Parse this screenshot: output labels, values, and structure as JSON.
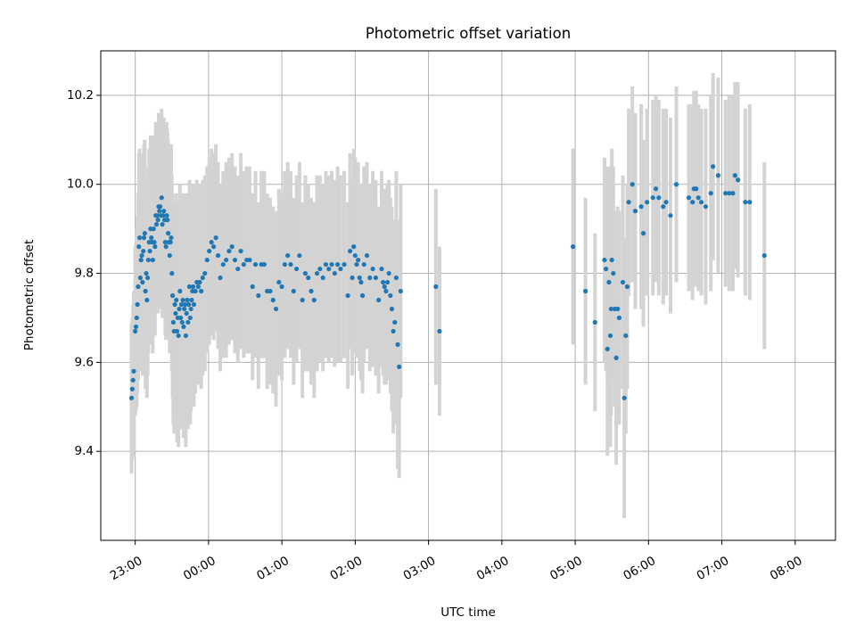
{
  "chart_data": {
    "type": "scatter",
    "title": "Photometric offset variation",
    "xlabel": "UTC time",
    "ylabel": "Photometric offset",
    "x_unit": "hours from 23:00 UTC",
    "xlim": [
      -0.47,
      9.55
    ],
    "ylim": [
      9.2,
      10.3
    ],
    "x_ticks": [
      {
        "value": 0,
        "label": "23:00"
      },
      {
        "value": 1,
        "label": "00:00"
      },
      {
        "value": 2,
        "label": "01:00"
      },
      {
        "value": 3,
        "label": "02:00"
      },
      {
        "value": 4,
        "label": "03:00"
      },
      {
        "value": 5,
        "label": "04:00"
      },
      {
        "value": 6,
        "label": "05:00"
      },
      {
        "value": 7,
        "label": "06:00"
      },
      {
        "value": 8,
        "label": "07:00"
      },
      {
        "value": 9,
        "label": "08:00"
      }
    ],
    "y_ticks": [
      {
        "value": 9.4,
        "label": "9.4"
      },
      {
        "value": 9.6,
        "label": "9.6"
      },
      {
        "value": 9.8,
        "label": "9.8"
      },
      {
        "value": 10.0,
        "label": "10.0"
      },
      {
        "value": 10.2,
        "label": "10.2"
      }
    ],
    "grid": true,
    "marker_color": "#1f77b4",
    "errorbar_color": "#d3d3d3",
    "points": [
      [
        -0.05,
        9.52,
        0.17
      ],
      [
        -0.04,
        9.54,
        0.16
      ],
      [
        -0.03,
        9.56,
        0.17
      ],
      [
        -0.02,
        9.58,
        0.18
      ],
      [
        0.0,
        9.67,
        0.19
      ],
      [
        0.01,
        9.68,
        0.19
      ],
      [
        0.02,
        9.7,
        0.2
      ],
      [
        0.03,
        9.73,
        0.2
      ],
      [
        0.04,
        9.77,
        0.21
      ],
      [
        0.05,
        9.86,
        0.21
      ],
      [
        0.06,
        9.88,
        0.2
      ],
      [
        0.07,
        9.79,
        0.21
      ],
      [
        0.08,
        9.83,
        0.21
      ],
      [
        0.09,
        9.84,
        0.22
      ],
      [
        0.1,
        9.78,
        0.21
      ],
      [
        0.11,
        9.85,
        0.22
      ],
      [
        0.12,
        9.88,
        0.21
      ],
      [
        0.13,
        9.89,
        0.21
      ],
      [
        0.14,
        9.76,
        0.22
      ],
      [
        0.15,
        9.8,
        0.21
      ],
      [
        0.16,
        9.74,
        0.22
      ],
      [
        0.17,
        9.79,
        0.22
      ],
      [
        0.18,
        9.83,
        0.21
      ],
      [
        0.19,
        9.87,
        0.21
      ],
      [
        0.2,
        9.85,
        0.21
      ],
      [
        0.21,
        9.9,
        0.21
      ],
      [
        0.22,
        9.88,
        0.2
      ],
      [
        0.23,
        9.87,
        0.2
      ],
      [
        0.24,
        9.83,
        0.21
      ],
      [
        0.25,
        9.9,
        0.21
      ],
      [
        0.26,
        9.87,
        0.21
      ],
      [
        0.27,
        9.86,
        0.2
      ],
      [
        0.28,
        9.93,
        0.21
      ],
      [
        0.29,
        9.91,
        0.2
      ],
      [
        0.3,
        9.93,
        0.21
      ],
      [
        0.31,
        9.92,
        0.21
      ],
      [
        0.32,
        9.95,
        0.21
      ],
      [
        0.33,
        9.94,
        0.2
      ],
      [
        0.34,
        9.95,
        0.21
      ],
      [
        0.35,
        9.93,
        0.21
      ],
      [
        0.36,
        9.97,
        0.2
      ],
      [
        0.37,
        9.91,
        0.21
      ],
      [
        0.38,
        9.93,
        0.21
      ],
      [
        0.39,
        9.94,
        0.21
      ],
      [
        0.4,
        9.92,
        0.21
      ],
      [
        0.41,
        9.87,
        0.21
      ],
      [
        0.42,
        9.86,
        0.21
      ],
      [
        0.43,
        9.93,
        0.21
      ],
      [
        0.44,
        9.92,
        0.2
      ],
      [
        0.45,
        9.89,
        0.21
      ],
      [
        0.46,
        9.87,
        0.22
      ],
      [
        0.47,
        9.84,
        0.22
      ],
      [
        0.48,
        9.87,
        0.21
      ],
      [
        0.49,
        9.88,
        0.21
      ],
      [
        0.5,
        9.8,
        0.22
      ],
      [
        0.51,
        9.75,
        0.23
      ],
      [
        0.52,
        9.69,
        0.23
      ],
      [
        0.53,
        9.67,
        0.23
      ],
      [
        0.54,
        9.73,
        0.23
      ],
      [
        0.55,
        9.71,
        0.23
      ],
      [
        0.56,
        9.74,
        0.24
      ],
      [
        0.57,
        9.67,
        0.25
      ],
      [
        0.58,
        9.7,
        0.24
      ],
      [
        0.59,
        9.66,
        0.25
      ],
      [
        0.6,
        9.72,
        0.24
      ],
      [
        0.61,
        9.76,
        0.24
      ],
      [
        0.62,
        9.7,
        0.25
      ],
      [
        0.63,
        9.73,
        0.23
      ],
      [
        0.64,
        9.69,
        0.24
      ],
      [
        0.65,
        9.74,
        0.24
      ],
      [
        0.66,
        9.68,
        0.25
      ],
      [
        0.67,
        9.72,
        0.24
      ],
      [
        0.68,
        9.73,
        0.25
      ],
      [
        0.69,
        9.66,
        0.25
      ],
      [
        0.7,
        9.71,
        0.24
      ],
      [
        0.71,
        9.74,
        0.24
      ],
      [
        0.72,
        9.69,
        0.24
      ],
      [
        0.73,
        9.73,
        0.24
      ],
      [
        0.74,
        9.77,
        0.24
      ],
      [
        0.75,
        9.7,
        0.24
      ],
      [
        0.76,
        9.72,
        0.23
      ],
      [
        0.77,
        9.74,
        0.23
      ],
      [
        0.78,
        9.76,
        0.23
      ],
      [
        0.79,
        9.77,
        0.23
      ],
      [
        0.8,
        9.73,
        0.23
      ],
      [
        0.82,
        9.76,
        0.23
      ],
      [
        0.84,
        9.78,
        0.23
      ],
      [
        0.86,
        9.77,
        0.22
      ],
      [
        0.88,
        9.78,
        0.22
      ],
      [
        0.9,
        9.76,
        0.22
      ],
      [
        0.92,
        9.79,
        0.22
      ],
      [
        0.95,
        9.8,
        0.22
      ],
      [
        0.98,
        9.83,
        0.21
      ],
      [
        1.01,
        9.85,
        0.21
      ],
      [
        1.04,
        9.87,
        0.21
      ],
      [
        1.07,
        9.86,
        0.21
      ],
      [
        1.1,
        9.88,
        0.21
      ],
      [
        1.13,
        9.84,
        0.21
      ],
      [
        1.16,
        9.79,
        0.21
      ],
      [
        1.2,
        9.82,
        0.21
      ],
      [
        1.24,
        9.83,
        0.22
      ],
      [
        1.28,
        9.85,
        0.21
      ],
      [
        1.32,
        9.86,
        0.21
      ],
      [
        1.36,
        9.83,
        0.21
      ],
      [
        1.4,
        9.81,
        0.21
      ],
      [
        1.44,
        9.85,
        0.22
      ],
      [
        1.48,
        9.82,
        0.21
      ],
      [
        1.52,
        9.83,
        0.21
      ],
      [
        1.56,
        9.83,
        0.21
      ],
      [
        1.6,
        9.77,
        0.21
      ],
      [
        1.64,
        9.82,
        0.21
      ],
      [
        1.68,
        9.75,
        0.21
      ],
      [
        1.72,
        9.82,
        0.21
      ],
      [
        1.76,
        9.82,
        0.21
      ],
      [
        1.8,
        9.76,
        0.22
      ],
      [
        1.84,
        9.76,
        0.21
      ],
      [
        1.88,
        9.74,
        0.21
      ],
      [
        1.92,
        9.72,
        0.22
      ],
      [
        1.96,
        9.78,
        0.21
      ],
      [
        2.0,
        9.77,
        0.21
      ],
      [
        2.04,
        9.82,
        0.21
      ],
      [
        2.08,
        9.84,
        0.21
      ],
      [
        2.12,
        9.82,
        0.21
      ],
      [
        2.16,
        9.76,
        0.21
      ],
      [
        2.2,
        9.81,
        0.21
      ],
      [
        2.24,
        9.84,
        0.21
      ],
      [
        2.28,
        9.74,
        0.22
      ],
      [
        2.32,
        9.8,
        0.22
      ],
      [
        2.36,
        9.79,
        0.21
      ],
      [
        2.4,
        9.76,
        0.21
      ],
      [
        2.44,
        9.74,
        0.22
      ],
      [
        2.48,
        9.8,
        0.22
      ],
      [
        2.52,
        9.81,
        0.21
      ],
      [
        2.56,
        9.79,
        0.21
      ],
      [
        2.6,
        9.82,
        0.21
      ],
      [
        2.64,
        9.81,
        0.21
      ],
      [
        2.68,
        9.82,
        0.21
      ],
      [
        2.72,
        9.8,
        0.21
      ],
      [
        2.76,
        9.82,
        0.22
      ],
      [
        2.8,
        9.81,
        0.21
      ],
      [
        2.85,
        9.82,
        0.21
      ],
      [
        2.9,
        9.75,
        0.21
      ],
      [
        2.93,
        9.85,
        0.22
      ],
      [
        2.96,
        9.79,
        0.22
      ],
      [
        2.98,
        9.86,
        0.22
      ],
      [
        3.0,
        9.84,
        0.22
      ],
      [
        3.02,
        9.82,
        0.21
      ],
      [
        3.04,
        9.83,
        0.22
      ],
      [
        3.06,
        9.79,
        0.21
      ],
      [
        3.08,
        9.78,
        0.22
      ],
      [
        3.1,
        9.75,
        0.22
      ],
      [
        3.12,
        9.82,
        0.22
      ],
      [
        3.16,
        9.84,
        0.21
      ],
      [
        3.2,
        9.79,
        0.21
      ],
      [
        3.24,
        9.81,
        0.22
      ],
      [
        3.28,
        9.79,
        0.22
      ],
      [
        3.32,
        9.74,
        0.21
      ],
      [
        3.36,
        9.81,
        0.22
      ],
      [
        3.38,
        9.78,
        0.21
      ],
      [
        3.4,
        9.77,
        0.22
      ],
      [
        3.42,
        9.76,
        0.21
      ],
      [
        3.44,
        9.78,
        0.22
      ],
      [
        3.46,
        9.8,
        0.21
      ],
      [
        3.48,
        9.75,
        0.22
      ],
      [
        3.5,
        9.72,
        0.23
      ],
      [
        3.52,
        9.67,
        0.23
      ],
      [
        3.54,
        9.69,
        0.23
      ],
      [
        3.56,
        9.79,
        0.24
      ],
      [
        3.58,
        9.64,
        0.28
      ],
      [
        3.6,
        9.59,
        0.25
      ],
      [
        3.62,
        9.76,
        0.24
      ],
      [
        4.1,
        9.77,
        0.22
      ],
      [
        4.15,
        9.67,
        0.19
      ],
      [
        5.97,
        9.86,
        0.22
      ],
      [
        6.14,
        9.76,
        0.21
      ],
      [
        6.27,
        9.69,
        0.2
      ],
      [
        6.4,
        9.83,
        0.23
      ],
      [
        6.42,
        9.81,
        0.23
      ],
      [
        6.44,
        9.63,
        0.24
      ],
      [
        6.46,
        9.78,
        0.26
      ],
      [
        6.48,
        9.66,
        0.25
      ],
      [
        6.49,
        9.72,
        0.24
      ],
      [
        6.5,
        9.83,
        0.25
      ],
      [
        6.52,
        9.8,
        0.24
      ],
      [
        6.54,
        9.72,
        0.22
      ],
      [
        6.56,
        9.61,
        0.24
      ],
      [
        6.58,
        9.72,
        0.23
      ],
      [
        6.6,
        9.7,
        0.24
      ],
      [
        6.65,
        9.78,
        0.24
      ],
      [
        6.67,
        9.52,
        0.27
      ],
      [
        6.69,
        9.66,
        0.22
      ],
      [
        6.71,
        9.77,
        0.23
      ],
      [
        6.73,
        9.96,
        0.21
      ],
      [
        6.78,
        10.0,
        0.22
      ],
      [
        6.82,
        9.94,
        0.22
      ],
      [
        6.9,
        9.95,
        0.23
      ],
      [
        6.93,
        9.89,
        0.21
      ],
      [
        6.98,
        9.96,
        0.21
      ],
      [
        7.06,
        9.97,
        0.22
      ],
      [
        7.1,
        9.99,
        0.21
      ],
      [
        7.14,
        9.97,
        0.22
      ],
      [
        7.2,
        9.95,
        0.22
      ],
      [
        7.24,
        9.96,
        0.21
      ],
      [
        7.3,
        9.93,
        0.22
      ],
      [
        7.38,
        10.0,
        0.22
      ],
      [
        7.55,
        9.97,
        0.21
      ],
      [
        7.6,
        9.96,
        0.22
      ],
      [
        7.62,
        9.99,
        0.22
      ],
      [
        7.65,
        9.99,
        0.22
      ],
      [
        7.68,
        9.97,
        0.21
      ],
      [
        7.72,
        9.96,
        0.21
      ],
      [
        7.78,
        9.95,
        0.22
      ],
      [
        7.85,
        9.98,
        0.22
      ],
      [
        7.88,
        10.04,
        0.21
      ],
      [
        7.95,
        10.02,
        0.22
      ],
      [
        8.05,
        9.98,
        0.21
      ],
      [
        8.1,
        9.98,
        0.22
      ],
      [
        8.15,
        9.98,
        0.22
      ],
      [
        8.18,
        10.02,
        0.21
      ],
      [
        8.22,
        10.01,
        0.22
      ],
      [
        8.32,
        9.96,
        0.21
      ],
      [
        8.38,
        9.96,
        0.22
      ],
      [
        8.58,
        9.84,
        0.21
      ]
    ]
  }
}
